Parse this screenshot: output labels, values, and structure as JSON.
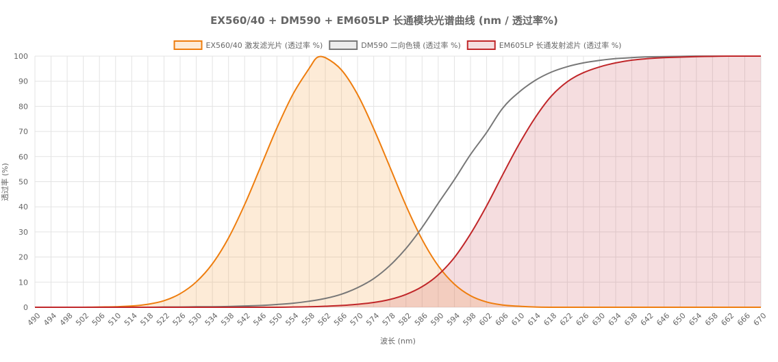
{
  "chart_data": {
    "type": "area",
    "title": "EX560/40 + DM590 + EM605LP 长通模块光谱曲线 (nm / 透过率%)",
    "xlabel": "波长 (nm)",
    "ylabel": "透过率 (%)",
    "xlim": [
      490,
      670
    ],
    "ylim": [
      0,
      100
    ],
    "y_ticks": [
      0,
      10,
      20,
      30,
      40,
      50,
      60,
      70,
      80,
      90,
      100
    ],
    "x_ticks": [
      490,
      494,
      498,
      502,
      506,
      510,
      514,
      518,
      522,
      526,
      530,
      534,
      538,
      542,
      546,
      550,
      554,
      558,
      562,
      566,
      570,
      574,
      578,
      582,
      586,
      590,
      594,
      598,
      602,
      606,
      610,
      614,
      618,
      622,
      626,
      630,
      634,
      638,
      642,
      646,
      650,
      654,
      658,
      662,
      666,
      670
    ],
    "grid": true,
    "legend_position": "top",
    "series": [
      {
        "name": "EX560/40 激发滤光片 (透过率 %)",
        "color": "#ee7d0e",
        "fill": "rgba(246,164,74,0.22)",
        "filled": true,
        "x": [
          490,
          494,
          498,
          502,
          506,
          510,
          514,
          518,
          522,
          526,
          530,
          534,
          538,
          542,
          546,
          550,
          554,
          558,
          560,
          562,
          566,
          570,
          574,
          578,
          582,
          586,
          590,
          594,
          598,
          602,
          606,
          610,
          614,
          618,
          622,
          626,
          630,
          634,
          638,
          642,
          646,
          650,
          654,
          658,
          662,
          666,
          670
        ],
        "values": [
          0,
          0,
          0,
          0,
          0.1,
          0.2,
          0.5,
          1.2,
          2.6,
          5.4,
          10.1,
          17.3,
          27.6,
          40.9,
          56.1,
          71.4,
          84.9,
          95.1,
          99.5,
          99.4,
          94.5,
          84.7,
          71.1,
          55.9,
          40.5,
          27.0,
          16.5,
          9.2,
          4.6,
          2.1,
          0.9,
          0.4,
          0.1,
          0,
          0,
          0,
          0,
          0,
          0,
          0,
          0,
          0,
          0,
          0,
          0,
          0,
          0
        ]
      },
      {
        "name": "DM590 二向色镜 (透过率 %)",
        "color": "#777777",
        "fill": "rgba(200,200,200,0.35)",
        "filled": false,
        "x": [
          490,
          494,
          498,
          502,
          506,
          510,
          514,
          518,
          522,
          526,
          530,
          534,
          538,
          542,
          546,
          550,
          554,
          558,
          562,
          566,
          570,
          574,
          578,
          582,
          586,
          590,
          594,
          598,
          602,
          606,
          610,
          614,
          618,
          622,
          626,
          630,
          634,
          638,
          642,
          646,
          650,
          654,
          658,
          662,
          666,
          670
        ],
        "values": [
          0,
          0,
          0,
          0,
          0,
          0,
          0,
          0,
          0.1,
          0.1,
          0.2,
          0.2,
          0.3,
          0.5,
          0.7,
          1.1,
          1.6,
          2.4,
          3.5,
          5.2,
          7.8,
          11.4,
          16.6,
          23.4,
          31.8,
          41.4,
          50.8,
          60.8,
          69.6,
          79.3,
          85.6,
          90.3,
          93.6,
          95.8,
          97.3,
          98.3,
          99.0,
          99.4,
          99.7,
          99.8,
          99.9,
          100,
          100,
          100,
          100,
          100
        ]
      },
      {
        "name": "EM605LP 长通发射滤片 (透过率 %)",
        "color": "#c02629",
        "fill": "rgba(210,100,110,0.22)",
        "filled": true,
        "x": [
          490,
          494,
          498,
          502,
          506,
          510,
          514,
          518,
          522,
          526,
          530,
          534,
          538,
          542,
          546,
          550,
          554,
          558,
          562,
          566,
          570,
          574,
          578,
          582,
          586,
          590,
          594,
          598,
          602,
          606,
          610,
          614,
          618,
          622,
          626,
          630,
          634,
          638,
          642,
          646,
          650,
          654,
          658,
          662,
          666,
          670
        ],
        "values": [
          0,
          0,
          0,
          0,
          0,
          0,
          0,
          0,
          0,
          0,
          0,
          0,
          0,
          0,
          0,
          0,
          0.1,
          0.2,
          0.4,
          0.7,
          1.2,
          1.9,
          3.1,
          5.1,
          8.2,
          12.9,
          19.8,
          29.2,
          40.4,
          52.8,
          64.8,
          75.4,
          84.0,
          89.8,
          93.4,
          95.7,
          97.3,
          98.4,
          99.0,
          99.4,
          99.6,
          99.8,
          99.9,
          100,
          100,
          100
        ]
      }
    ]
  }
}
